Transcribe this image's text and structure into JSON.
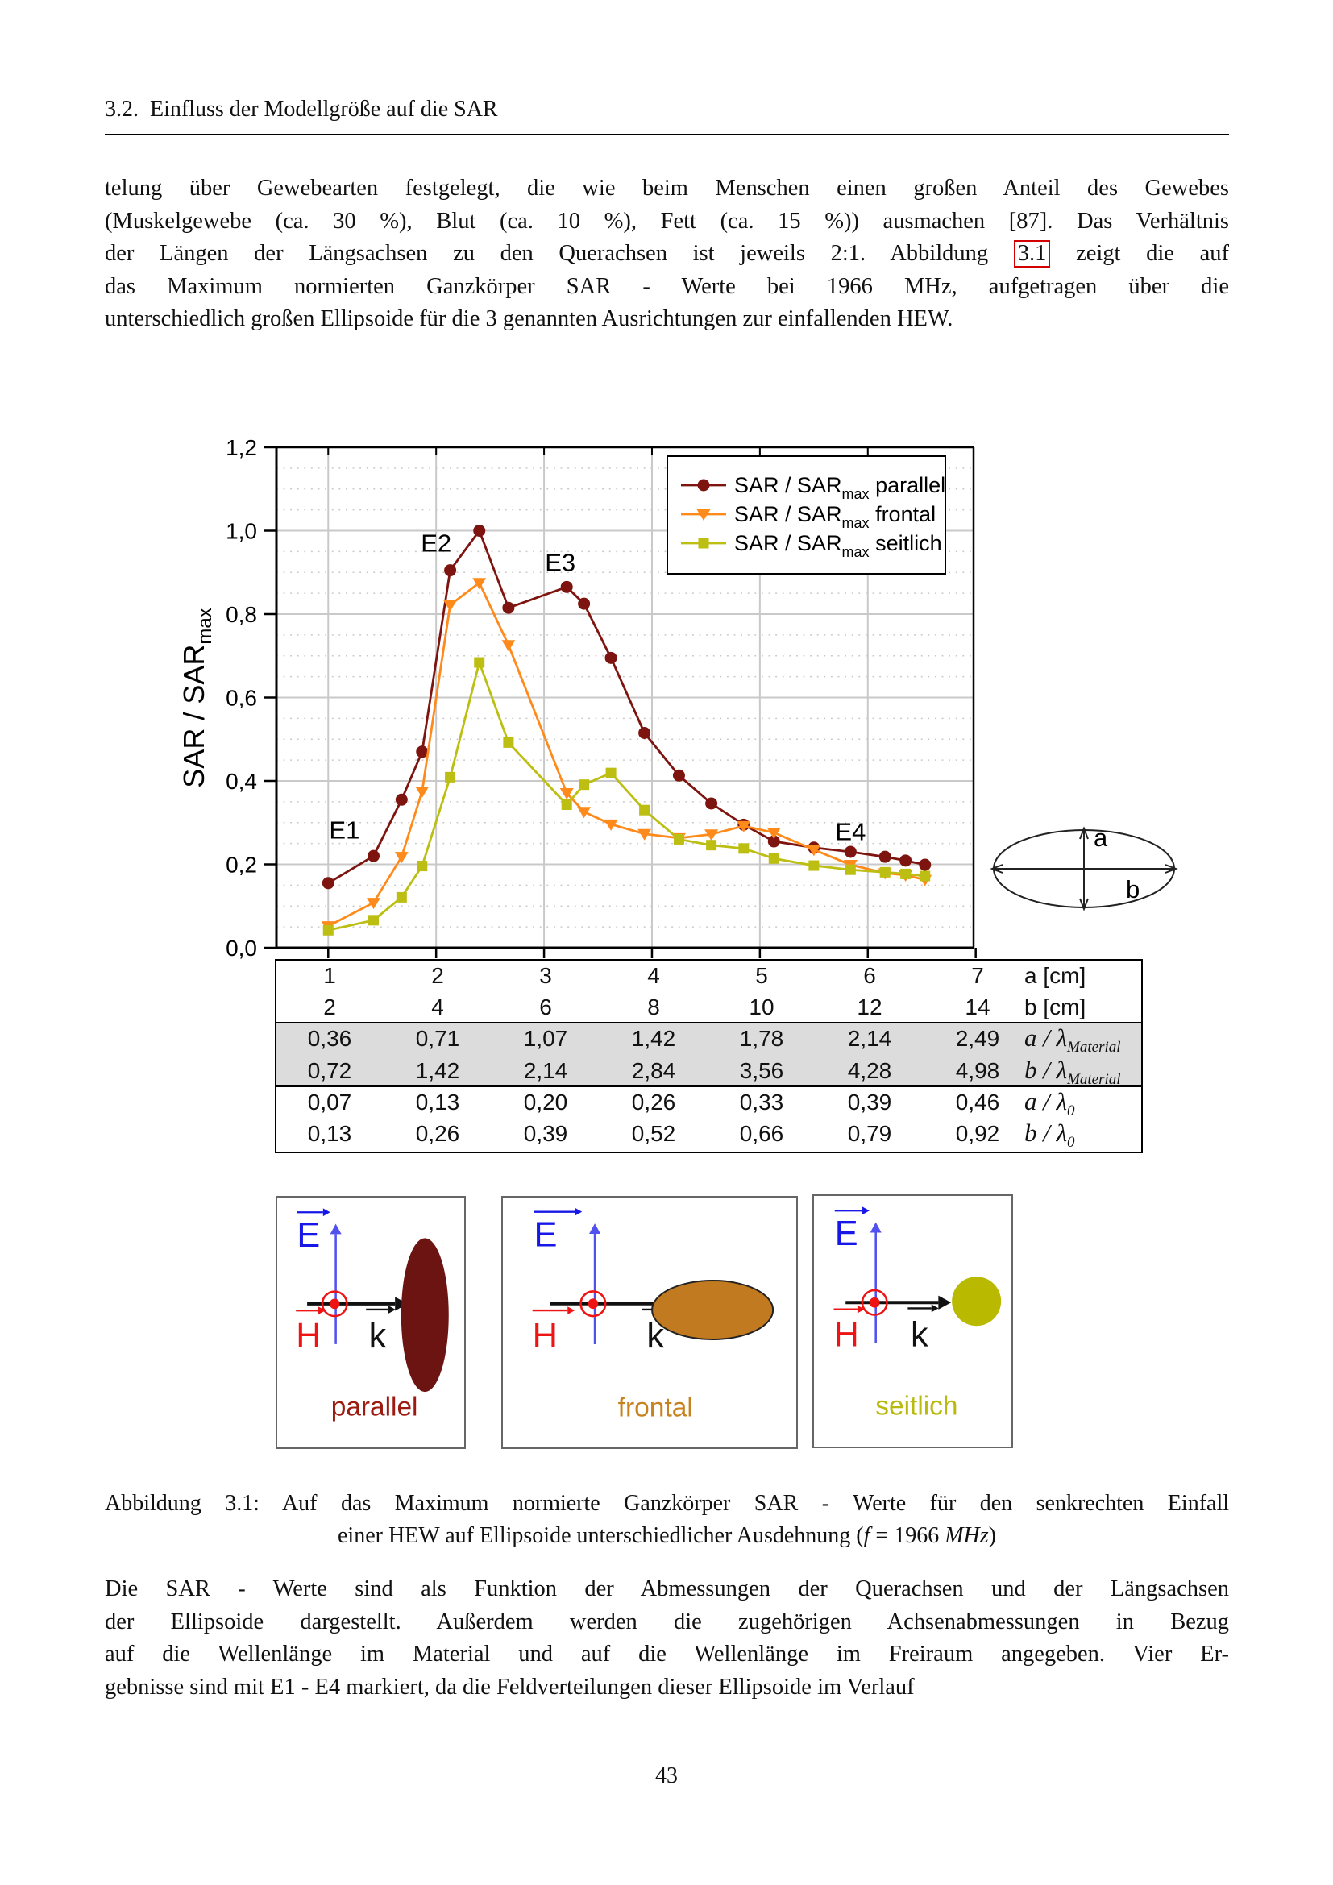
{
  "page": {
    "number": "43"
  },
  "header": {
    "section": "3.2.",
    "title": "Einfluss der Modellgröße auf die SAR"
  },
  "paragraph1": {
    "line1": "telung über Gewebearten festgelegt, die wie beim Menschen einen großen Anteil des Gewebes",
    "line2": "(Muskelgewebe (ca. 30 %), Blut (ca. 10 %), Fett (ca. 15 %)) ausmachen [87]. Das Verhältnis",
    "line3_pre": "der Längen der Längsachsen zu den Querachsen ist jeweils 2:1. Abbildung",
    "line3_ref": "3.1",
    "line3_post": "zeigt die auf",
    "line4": "das Maximum normierten Ganzkörper SAR - Werte bei 1966 MHz, aufgetragen über die",
    "line5": "unterschiedlich großen Ellipsoide für die 3 genannten Ausrichtungen zur einfallenden HEW."
  },
  "chart_data": {
    "type": "line",
    "title": "",
    "ylabel_main": "SAR / SAR",
    "ylabel_sub": "max",
    "ylim": [
      0,
      1.2
    ],
    "xlim": [
      0.52,
      6.98
    ],
    "yticks": [
      {
        "v": 0.0,
        "label": "0,0"
      },
      {
        "v": 0.2,
        "label": "0,2"
      },
      {
        "v": 0.4,
        "label": "0,4"
      },
      {
        "v": 0.6,
        "label": "0,6"
      },
      {
        "v": 0.8,
        "label": "0,8"
      },
      {
        "v": 1.0,
        "label": "1,0"
      },
      {
        "v": 1.2,
        "label": "1,2"
      }
    ],
    "xgridlines": [
      1,
      2,
      3,
      4,
      5,
      6
    ],
    "xticks": [
      1,
      2,
      3,
      4,
      5,
      6,
      7
    ],
    "grid": "major-solid, minor-dotted 0.05 steps",
    "legend_position": "top-right",
    "x": [
      1.0,
      1.42,
      1.68,
      1.87,
      2.13,
      2.4,
      2.67,
      3.21,
      3.37,
      3.62,
      3.93,
      4.25,
      4.55,
      4.85,
      5.13,
      5.5,
      5.84,
      6.16,
      6.35,
      6.53
    ],
    "series": [
      {
        "name_main": "SAR / SAR",
        "name_sub": "max",
        "name_tail": " parallel",
        "color": "#7d1410",
        "marker": "circle",
        "values": [
          0.155,
          0.22,
          0.355,
          0.47,
          0.905,
          1.0,
          0.815,
          0.865,
          0.825,
          0.695,
          0.515,
          0.413,
          0.346,
          0.295,
          0.255,
          0.24,
          0.23,
          0.218,
          0.209,
          0.199
        ]
      },
      {
        "name_main": "SAR / SAR",
        "name_sub": "max",
        "name_tail": " frontal",
        "color": "#ff8a1c",
        "marker": "triangle-down",
        "values": [
          0.052,
          0.108,
          0.218,
          0.375,
          0.822,
          0.875,
          0.726,
          0.371,
          0.326,
          0.296,
          0.273,
          0.263,
          0.272,
          0.292,
          0.276,
          0.235,
          0.199,
          0.179,
          0.174,
          0.163
        ]
      },
      {
        "name_main": "SAR / SAR",
        "name_sub": "max",
        "name_tail": " seitlich",
        "color": "#bcbe11",
        "marker": "square",
        "values": [
          0.042,
          0.066,
          0.121,
          0.196,
          0.409,
          0.684,
          0.492,
          0.343,
          0.391,
          0.419,
          0.33,
          0.26,
          0.246,
          0.238,
          0.214,
          0.197,
          0.187,
          0.181,
          0.177,
          0.172
        ]
      }
    ],
    "annotations": [
      {
        "text": "E1",
        "a": 1.15,
        "v": 0.262
      },
      {
        "text": "E2",
        "a": 2.0,
        "v": 0.95
      },
      {
        "text": "E3",
        "a": 3.15,
        "v": 0.903
      },
      {
        "text": "E4",
        "a": 5.84,
        "v": 0.258
      }
    ]
  },
  "size_diagram": {
    "a_label": "a",
    "b_label": "b"
  },
  "axis_table": {
    "rows": [
      {
        "values": [
          "1",
          "2",
          "3",
          "4",
          "5",
          "6",
          "7"
        ],
        "label": {
          "type": "plain",
          "text": "a [cm]"
        },
        "shaded": false
      },
      {
        "values": [
          "2",
          "4",
          "6",
          "8",
          "10",
          "12",
          "14"
        ],
        "label": {
          "type": "plain",
          "text": "b [cm]"
        },
        "shaded": false
      },
      {
        "values": [
          "0,36",
          "0,71",
          "1,07",
          "1,42",
          "1,78",
          "2,14",
          "2,49"
        ],
        "label": {
          "type": "math",
          "base": "a / λ",
          "sub": "Material"
        },
        "shaded": true
      },
      {
        "values": [
          "0,72",
          "1,42",
          "2,14",
          "2,84",
          "3,56",
          "4,28",
          "4,98"
        ],
        "label": {
          "type": "math",
          "base": "b / λ",
          "sub": "Material"
        },
        "shaded": true
      },
      {
        "values": [
          "0,07",
          "0,13",
          "0,20",
          "0,26",
          "0,33",
          "0,39",
          "0,46"
        ],
        "label": {
          "type": "math",
          "base": "a / λ",
          "sub": "0"
        },
        "shaded": false
      },
      {
        "values": [
          "0,13",
          "0,26",
          "0,39",
          "0,52",
          "0,66",
          "0,79",
          "0,92"
        ],
        "label": {
          "type": "math",
          "base": "b / λ",
          "sub": "0"
        },
        "shaded": false
      }
    ]
  },
  "diagrams": {
    "e_label": "E",
    "h_label": "H",
    "k_label": "k",
    "boxes": [
      {
        "label": "parallel",
        "label_color": "#9c1a10",
        "shape": "ellipse-vertical",
        "fill": "#6b1411"
      },
      {
        "label": "frontal",
        "label_color": "#c8821d",
        "shape": "ellipse-horizontal",
        "fill": "#c17a1f"
      },
      {
        "label": "seitlich",
        "label_color": "#b9ba10",
        "shape": "circle",
        "fill": "#b9ba00"
      }
    ]
  },
  "caption": {
    "line1": "Abbildung 3.1: Auf das Maximum normierte Ganzkörper SAR - Werte für den senkrechten Einfall",
    "line2_pre": "einer HEW auf Ellipsoide unterschiedlicher Ausdehnung (",
    "line2_f": "f",
    "line2_eq": " = 1966 ",
    "line2_unit": "MHz",
    "line2_close": ")"
  },
  "paragraph2": {
    "line1": "Die SAR - Werte sind als Funktion der Abmessungen der Querachsen und der Längsachsen",
    "line2": "der Ellipsoide dargestellt. Außerdem werden die zugehörigen Achsenabmessungen in Bezug",
    "line3": "auf die Wellenlänge im Material und auf die Wellenlänge im Freiraum angegeben. Vier Er-",
    "line4": "gebnisse sind mit E1 - E4 markiert, da die Feldverteilungen dieser Ellipsoide im Verlauf"
  },
  "colors": {
    "reference_box": "#d40000",
    "table_shade": "#dcdcdc",
    "grid_major": "#c9c9c9",
    "grid_minor": "#c6c6c6"
  }
}
